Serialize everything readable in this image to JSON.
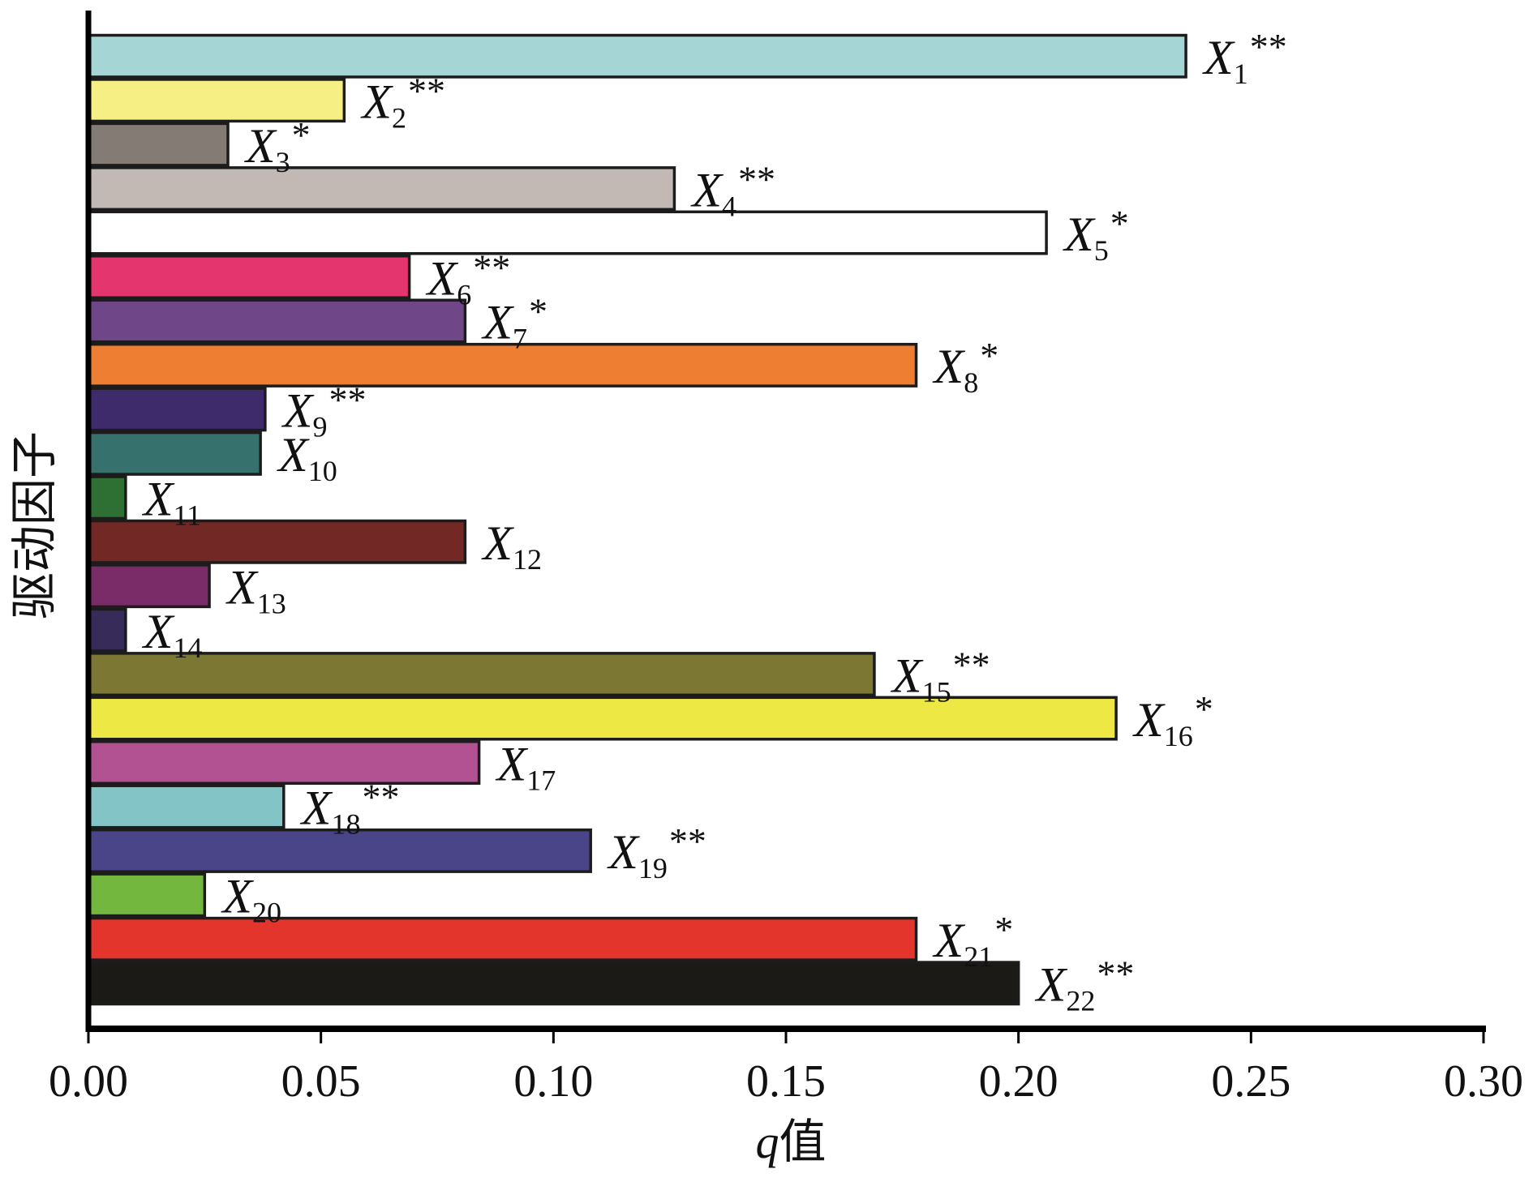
{
  "chart_data": {
    "type": "bar",
    "orientation": "horizontal",
    "title": "",
    "xlabel": "q值",
    "xlabel_italic_part": "q",
    "xlabel_rest": "值",
    "ylabel": "驱动因子",
    "xlim": [
      0,
      0.3
    ],
    "xticks": [
      "0.00",
      "0.05",
      "0.10",
      "0.15",
      "0.20",
      "0.25",
      "0.30"
    ],
    "xtick_values": [
      0,
      0.05,
      0.1,
      0.15,
      0.2,
      0.25,
      0.3
    ],
    "grid": false,
    "legend": "none",
    "bars": [
      {
        "name": "X",
        "sub": "1",
        "sig": "**",
        "value": 0.236,
        "color": "#a6d5d6"
      },
      {
        "name": "X",
        "sub": "2",
        "sig": "**",
        "value": 0.055,
        "color": "#f5ef84"
      },
      {
        "name": "X",
        "sub": "3",
        "sig": "*",
        "value": 0.03,
        "color": "#857b75"
      },
      {
        "name": "X",
        "sub": "4",
        "sig": "**",
        "value": 0.126,
        "color": "#c2b9b5"
      },
      {
        "name": "X",
        "sub": "5",
        "sig": "*",
        "value": 0.206,
        "color": "#ffffff"
      },
      {
        "name": "X",
        "sub": "6",
        "sig": "**",
        "value": 0.069,
        "color": "#e5356f"
      },
      {
        "name": "X",
        "sub": "7",
        "sig": "*",
        "value": 0.081,
        "color": "#6f4789"
      },
      {
        "name": "X",
        "sub": "8",
        "sig": "*",
        "value": 0.178,
        "color": "#ed7e32"
      },
      {
        "name": "X",
        "sub": "9",
        "sig": "**",
        "value": 0.038,
        "color": "#3d2b6b"
      },
      {
        "name": "X",
        "sub": "10",
        "sig": "",
        "value": 0.037,
        "color": "#36716e"
      },
      {
        "name": "X",
        "sub": "11",
        "sig": "",
        "value": 0.008,
        "color": "#2e7033"
      },
      {
        "name": "X",
        "sub": "12",
        "sig": "",
        "value": 0.081,
        "color": "#722824"
      },
      {
        "name": "X",
        "sub": "13",
        "sig": "",
        "value": 0.026,
        "color": "#7a2c68"
      },
      {
        "name": "X",
        "sub": "14",
        "sig": "",
        "value": 0.008,
        "color": "#362b59"
      },
      {
        "name": "X",
        "sub": "15",
        "sig": "**",
        "value": 0.169,
        "color": "#7c7733"
      },
      {
        "name": "X",
        "sub": "16",
        "sig": "*",
        "value": 0.221,
        "color": "#eee845"
      },
      {
        "name": "X",
        "sub": "17",
        "sig": "",
        "value": 0.084,
        "color": "#b25292"
      },
      {
        "name": "X",
        "sub": "18",
        "sig": "**",
        "value": 0.042,
        "color": "#83c5c7"
      },
      {
        "name": "X",
        "sub": "19",
        "sig": "**",
        "value": 0.108,
        "color": "#4a4488"
      },
      {
        "name": "X",
        "sub": "20",
        "sig": "",
        "value": 0.025,
        "color": "#73b73f"
      },
      {
        "name": "X",
        "sub": "21",
        "sig": "*",
        "value": 0.178,
        "color": "#e3352c"
      },
      {
        "name": "X",
        "sub": "22",
        "sig": "**",
        "value": 0.2,
        "color": "#1b1a17"
      }
    ]
  }
}
